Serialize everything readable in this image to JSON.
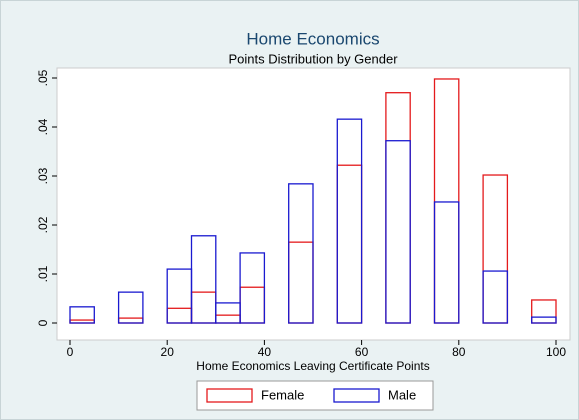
{
  "chart_data": {
    "type": "histogram",
    "title": "Home Economics",
    "subtitle": "Points Distribution by Gender",
    "x_label": "Home Economics Leaving Certificate Points",
    "bins": [
      0,
      5,
      10,
      15,
      20,
      25,
      30,
      35,
      40,
      45,
      50,
      55,
      60,
      65,
      70,
      75,
      80,
      85,
      90,
      95,
      100
    ],
    "series": [
      {
        "name": "Female",
        "color": "#e41a1c",
        "values": [
          0.0006,
          0,
          0.001,
          0,
          0.003,
          0.0063,
          0.0016,
          0.0073,
          0,
          0.0165,
          0,
          0.0322,
          0,
          0.047,
          0,
          0.0498,
          0,
          0.0302,
          0,
          0.0047
        ]
      },
      {
        "name": "Male",
        "color": "#1a1ad0",
        "values": [
          0.0033,
          0,
          0.0063,
          0,
          0.011,
          0.0178,
          0.0041,
          0.0143,
          0,
          0.0284,
          0,
          0.0416,
          0,
          0.0372,
          0,
          0.0247,
          0,
          0.0106,
          0,
          0.0012
        ]
      }
    ],
    "xlim": [
      0,
      100
    ],
    "xticks": [
      0,
      20,
      40,
      60,
      80,
      100
    ],
    "ylim": [
      0,
      0.05
    ],
    "yticks": [
      {
        "value": 0,
        "label": "0"
      },
      {
        "value": 0.01,
        "label": ".01"
      },
      {
        "value": 0.02,
        "label": ".02"
      },
      {
        "value": 0.03,
        "label": ".03"
      },
      {
        "value": 0.04,
        "label": ".04"
      },
      {
        "value": 0.05,
        "label": ".05"
      }
    ],
    "legend": "bottom"
  }
}
